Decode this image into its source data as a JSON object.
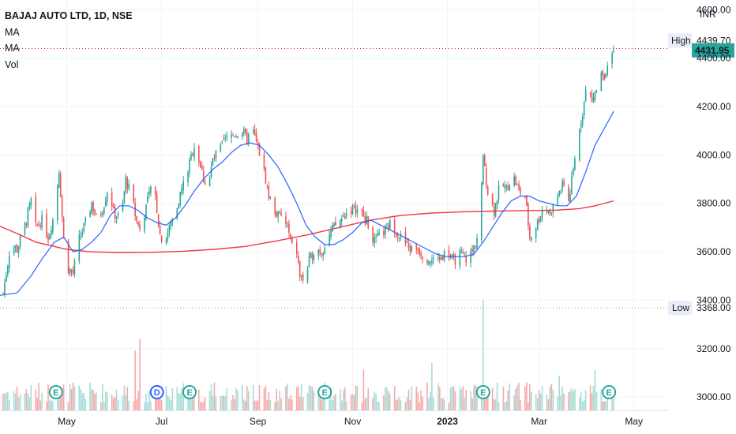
{
  "legend": {
    "title": "BAJAJ AUTO LTD, 1D, NSE",
    "lines": [
      "MA",
      "MA",
      "Vol"
    ]
  },
  "currency": "INR",
  "colors": {
    "up": "#26a69a",
    "down": "#ef5350",
    "vol_up": "#a8dcd6",
    "vol_down": "#f7a9a7",
    "ma_short": "#2962ff",
    "ma_long": "#f23645",
    "dotted_high": "#c2185b",
    "dotted_low": "#9e9e9e",
    "last_price_bg": "#26a69a",
    "earnings": "#26a69a",
    "dividend": "#2962ff"
  },
  "chart_data": {
    "type": "candlestick",
    "symbol": "BAJAJ AUTO LTD",
    "interval": "1D",
    "exchange": "NSE",
    "y_ticks": [
      "4600.00",
      "4400.00",
      "4200.00",
      "4000.00",
      "3800.00",
      "3600.00",
      "3400.00",
      "3200.00",
      "3000.00"
    ],
    "y_tick_values": [
      4600,
      4400,
      4200,
      4000,
      3800,
      3600,
      3400,
      3200,
      3000
    ],
    "x_ticks": [
      {
        "label": "May",
        "bold": false,
        "day": 20
      },
      {
        "label": "Jul",
        "bold": false,
        "day": 81
      },
      {
        "label": "Sep",
        "bold": false,
        "day": 143
      },
      {
        "label": "Nov",
        "bold": false,
        "day": 204
      },
      {
        "label": "2023",
        "bold": true,
        "day": 265
      },
      {
        "label": "Mar",
        "bold": false,
        "day": 324
      },
      {
        "label": "May",
        "bold": false,
        "day": 385
      }
    ],
    "ylim": [
      2945,
      4640
    ],
    "day_range": [
      -23,
      405
    ],
    "high": {
      "label": "High",
      "value": 4439.7,
      "text": "4439.70"
    },
    "low": {
      "label": "Low",
      "value": 3368.0,
      "text": "3368.00"
    },
    "last": {
      "value": 4431.95,
      "text": "4431.95"
    },
    "close_path": [
      [
        -23,
        3350
      ],
      [
        -20,
        3470
      ],
      [
        -16,
        3640
      ],
      [
        -12,
        3610
      ],
      [
        -6,
        3730
      ],
      [
        -3,
        3810
      ],
      [
        0,
        3700
      ],
      [
        4,
        3730
      ],
      [
        8,
        3660
      ],
      [
        12,
        3760
      ],
      [
        15,
        3940
      ],
      [
        18,
        3650
      ],
      [
        21,
        3530
      ],
      [
        24,
        3510
      ],
      [
        28,
        3650
      ],
      [
        32,
        3720
      ],
      [
        36,
        3800
      ],
      [
        40,
        3720
      ],
      [
        44,
        3800
      ],
      [
        47,
        3880
      ],
      [
        50,
        3760
      ],
      [
        55,
        3740
      ],
      [
        58,
        3900
      ],
      [
        62,
        3820
      ],
      [
        65,
        3720
      ],
      [
        68,
        3700
      ],
      [
        72,
        3820
      ],
      [
        76,
        3880
      ],
      [
        80,
        3670
      ],
      [
        83,
        3640
      ],
      [
        86,
        3700
      ],
      [
        90,
        3770
      ],
      [
        94,
        3860
      ],
      [
        98,
        3940
      ],
      [
        102,
        4040
      ],
      [
        105,
        3980
      ],
      [
        108,
        3900
      ],
      [
        111,
        3870
      ],
      [
        114,
        3980
      ],
      [
        118,
        4020
      ],
      [
        122,
        4060
      ],
      [
        126,
        4080
      ],
      [
        130,
        4090
      ],
      [
        133,
        4100
      ],
      [
        136,
        4060
      ],
      [
        139,
        4110
      ],
      [
        142,
        4050
      ],
      [
        145,
        3990
      ],
      [
        148,
        3900
      ],
      [
        150,
        3830
      ],
      [
        153,
        3780
      ],
      [
        156,
        3750
      ],
      [
        159,
        3740
      ],
      [
        162,
        3700
      ],
      [
        165,
        3620
      ],
      [
        168,
        3600
      ],
      [
        170,
        3500
      ],
      [
        173,
        3480
      ],
      [
        176,
        3560
      ],
      [
        180,
        3620
      ],
      [
        184,
        3600
      ],
      [
        188,
        3660
      ],
      [
        192,
        3700
      ],
      [
        196,
        3730
      ],
      [
        200,
        3760
      ],
      [
        204,
        3780
      ],
      [
        208,
        3770
      ],
      [
        212,
        3740
      ],
      [
        215,
        3700
      ],
      [
        218,
        3640
      ],
      [
        221,
        3660
      ],
      [
        225,
        3690
      ],
      [
        229,
        3720
      ],
      [
        233,
        3680
      ],
      [
        237,
        3640
      ],
      [
        241,
        3610
      ],
      [
        245,
        3620
      ],
      [
        249,
        3590
      ],
      [
        253,
        3570
      ],
      [
        257,
        3560
      ],
      [
        261,
        3580
      ],
      [
        265,
        3600
      ],
      [
        269,
        3560
      ],
      [
        273,
        3590
      ],
      [
        277,
        3570
      ],
      [
        281,
        3600
      ],
      [
        285,
        3680
      ],
      [
        288,
        3980
      ],
      [
        291,
        3850
      ],
      [
        295,
        3770
      ],
      [
        299,
        3880
      ],
      [
        303,
        3860
      ],
      [
        307,
        3920
      ],
      [
        311,
        3850
      ],
      [
        315,
        3830
      ],
      [
        318,
        3660
      ],
      [
        321,
        3690
      ],
      [
        324,
        3740
      ],
      [
        327,
        3790
      ],
      [
        331,
        3760
      ],
      [
        334,
        3800
      ],
      [
        337,
        3850
      ],
      [
        340,
        3880
      ],
      [
        343,
        3810
      ],
      [
        346,
        3930
      ],
      [
        349,
        4080
      ],
      [
        352,
        4180
      ],
      [
        355,
        4300
      ],
      [
        358,
        4220
      ],
      [
        361,
        4280
      ],
      [
        364,
        4350
      ],
      [
        367,
        4320
      ],
      [
        370,
        4400
      ],
      [
        372,
        4431.95
      ]
    ],
    "ma_short_path": [
      [
        -23,
        3420
      ],
      [
        -12,
        3430
      ],
      [
        -3,
        3500
      ],
      [
        4,
        3570
      ],
      [
        12,
        3640
      ],
      [
        18,
        3660
      ],
      [
        24,
        3600
      ],
      [
        30,
        3610
      ],
      [
        36,
        3640
      ],
      [
        42,
        3680
      ],
      [
        48,
        3750
      ],
      [
        54,
        3790
      ],
      [
        60,
        3790
      ],
      [
        66,
        3770
      ],
      [
        72,
        3740
      ],
      [
        78,
        3720
      ],
      [
        84,
        3710
      ],
      [
        90,
        3740
      ],
      [
        96,
        3790
      ],
      [
        102,
        3850
      ],
      [
        108,
        3900
      ],
      [
        114,
        3940
      ],
      [
        120,
        3970
      ],
      [
        126,
        4010
      ],
      [
        132,
        4040
      ],
      [
        138,
        4050
      ],
      [
        144,
        4040
      ],
      [
        150,
        4000
      ],
      [
        156,
        3950
      ],
      [
        162,
        3880
      ],
      [
        168,
        3800
      ],
      [
        174,
        3710
      ],
      [
        180,
        3660
      ],
      [
        186,
        3630
      ],
      [
        192,
        3630
      ],
      [
        198,
        3650
      ],
      [
        204,
        3680
      ],
      [
        210,
        3720
      ],
      [
        216,
        3730
      ],
      [
        222,
        3710
      ],
      [
        228,
        3690
      ],
      [
        234,
        3670
      ],
      [
        240,
        3650
      ],
      [
        246,
        3630
      ],
      [
        252,
        3610
      ],
      [
        258,
        3590
      ],
      [
        264,
        3580
      ],
      [
        270,
        3580
      ],
      [
        276,
        3580
      ],
      [
        282,
        3590
      ],
      [
        288,
        3640
      ],
      [
        294,
        3700
      ],
      [
        300,
        3760
      ],
      [
        306,
        3810
      ],
      [
        312,
        3830
      ],
      [
        318,
        3830
      ],
      [
        324,
        3810
      ],
      [
        330,
        3800
      ],
      [
        336,
        3790
      ],
      [
        342,
        3790
      ],
      [
        348,
        3830
      ],
      [
        354,
        3930
      ],
      [
        360,
        4040
      ],
      [
        366,
        4110
      ],
      [
        372,
        4180
      ]
    ],
    "ma_long_path": [
      [
        -23,
        3705
      ],
      [
        -10,
        3670
      ],
      [
        0,
        3640
      ],
      [
        10,
        3625
      ],
      [
        20,
        3610
      ],
      [
        35,
        3600
      ],
      [
        55,
        3597
      ],
      [
        75,
        3598
      ],
      [
        95,
        3602
      ],
      [
        115,
        3610
      ],
      [
        135,
        3622
      ],
      [
        155,
        3645
      ],
      [
        175,
        3670
      ],
      [
        195,
        3700
      ],
      [
        215,
        3730
      ],
      [
        235,
        3750
      ],
      [
        255,
        3760
      ],
      [
        275,
        3765
      ],
      [
        295,
        3768
      ],
      [
        315,
        3770
      ],
      [
        335,
        3772
      ],
      [
        350,
        3778
      ],
      [
        360,
        3790
      ],
      [
        372,
        3810
      ]
    ],
    "big_volume_bars": [
      [
        13,
        0.78
      ],
      [
        64,
        0.84
      ],
      [
        67,
        1.0
      ],
      [
        110,
        0.55
      ],
      [
        211,
        0.57
      ],
      [
        255,
        0.67
      ],
      [
        288,
        1.55
      ],
      [
        337,
        0.49
      ],
      [
        360,
        0.57
      ],
      [
        370,
        0.59
      ]
    ],
    "events": [
      {
        "type": "earnings",
        "glyph": "E",
        "day": 13
      },
      {
        "type": "dividend",
        "glyph": "D",
        "day": 78
      },
      {
        "type": "earnings",
        "glyph": "E",
        "day": 99
      },
      {
        "type": "earnings",
        "glyph": "E",
        "day": 186
      },
      {
        "type": "earnings",
        "glyph": "E",
        "day": 288
      },
      {
        "type": "earnings",
        "glyph": "E",
        "day": 369
      }
    ]
  }
}
